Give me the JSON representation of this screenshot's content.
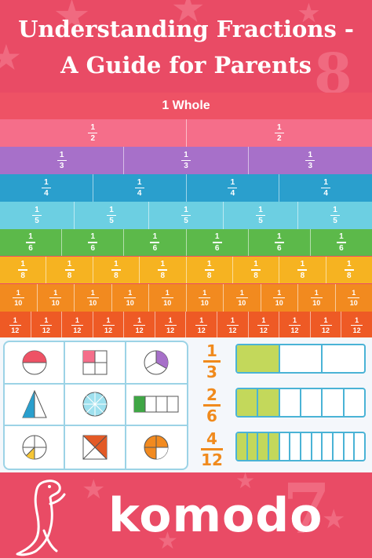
{
  "header": {
    "title_line1": "Understanding Fractions -",
    "title_line2": "A Guide for Parents"
  },
  "fraction_wall": {
    "whole_label": "1 Whole",
    "rows": [
      {
        "denominator": "2",
        "numerator": "1",
        "count": 2,
        "color": "#f56e8a"
      },
      {
        "denominator": "3",
        "numerator": "1",
        "count": 3,
        "color": "#a770c9"
      },
      {
        "denominator": "4",
        "numerator": "1",
        "count": 4,
        "color": "#2a9fcd"
      },
      {
        "denominator": "5",
        "numerator": "1",
        "count": 5,
        "color": "#6ccfe2"
      },
      {
        "denominator": "6",
        "numerator": "1",
        "count": 6,
        "color": "#5cb94a"
      },
      {
        "denominator": "8",
        "numerator": "1",
        "count": 8,
        "color": "#f6b321"
      },
      {
        "denominator": "10",
        "numerator": "1",
        "count": 10,
        "color": "#f28a1f"
      },
      {
        "denominator": "12",
        "numerator": "1",
        "count": 12,
        "color": "#ee5a25"
      }
    ],
    "whole_color": "#ee5265"
  },
  "shapes": [
    {
      "name": "half-circle-icon"
    },
    {
      "name": "quarter-square-icon"
    },
    {
      "name": "third-circle-icon"
    },
    {
      "name": "half-triangle-icon"
    },
    {
      "name": "segmented-circle-icon"
    },
    {
      "name": "quarter-bar-icon"
    },
    {
      "name": "eighth-circle-icon"
    },
    {
      "name": "quarter-diagonal-square-icon"
    },
    {
      "name": "quarter-orange-circle-icon"
    }
  ],
  "equivalent_fractions": [
    {
      "numerator": "1",
      "denominator": "3",
      "parts": 3,
      "filled": 1
    },
    {
      "numerator": "2",
      "denominator": "6",
      "parts": 6,
      "filled": 2
    },
    {
      "numerator": "4",
      "denominator": "12",
      "parts": 12,
      "filled": 4
    }
  ],
  "footer": {
    "logo_text": "komodo",
    "mascot_icon": "komodo-dragon-mascot-icon"
  }
}
